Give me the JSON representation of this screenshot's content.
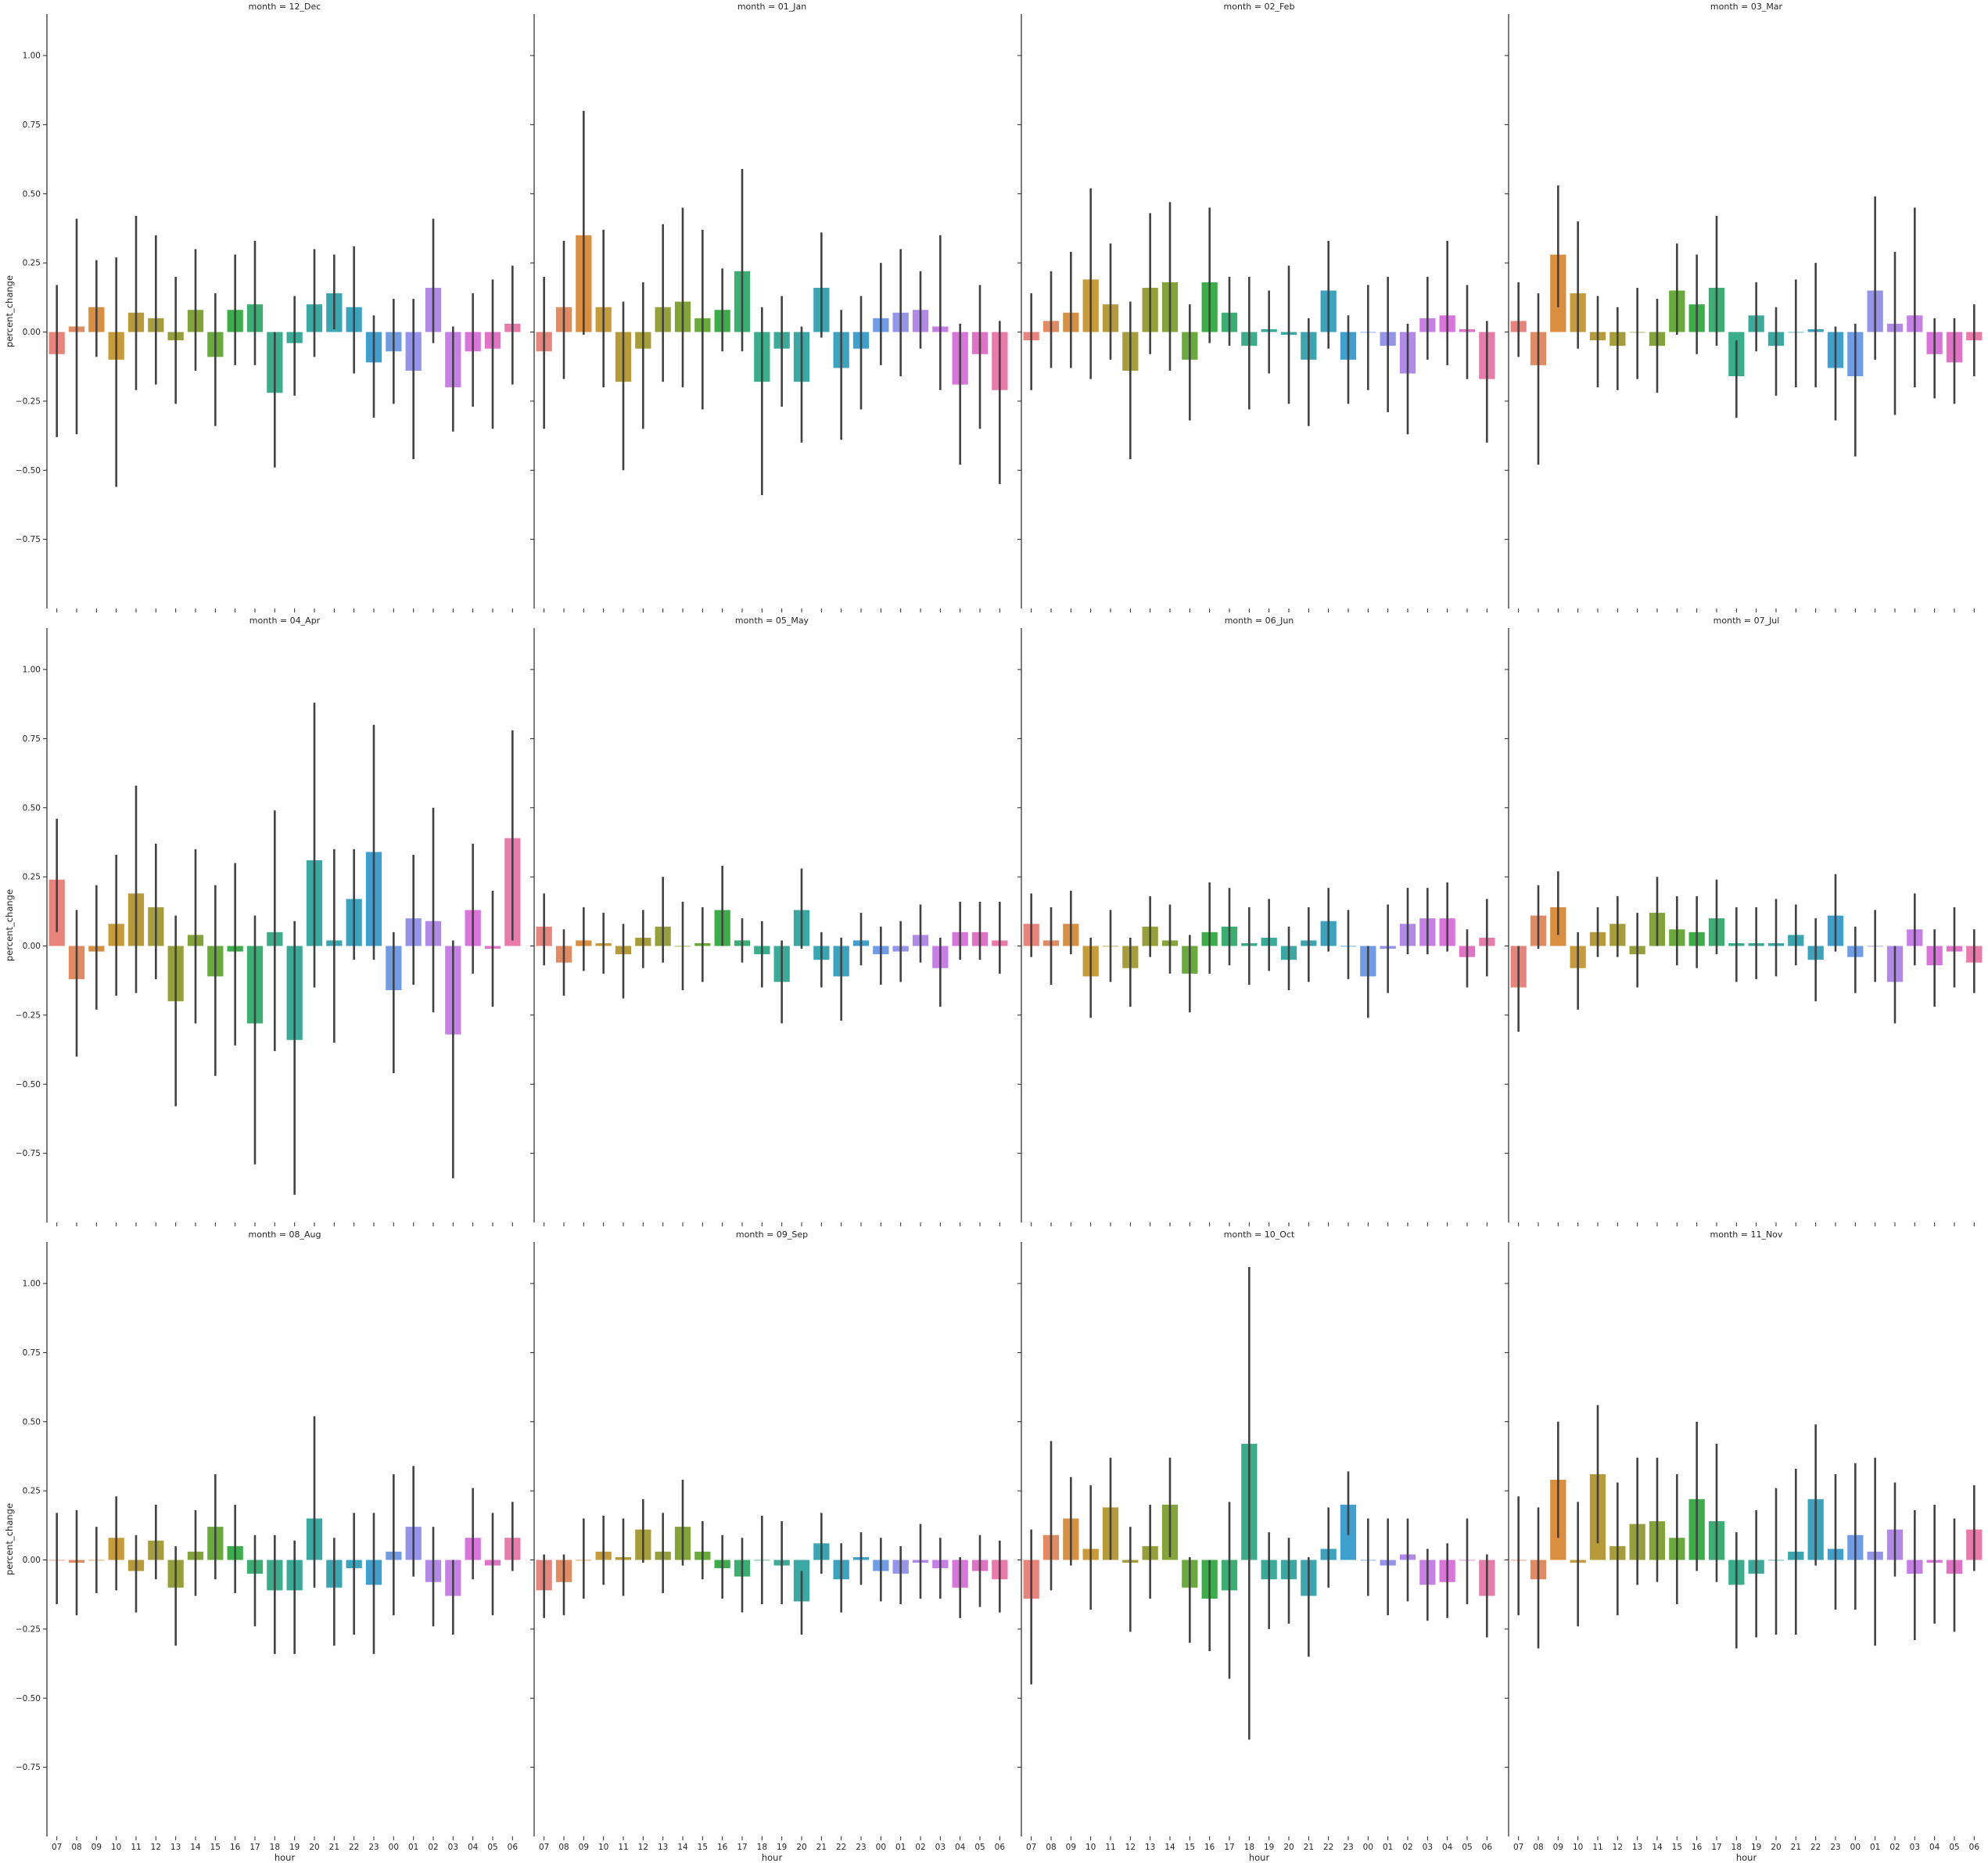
{
  "chart_data": {
    "type": "bar",
    "layout": "facet-grid 3 rows x 4 columns, shared axes",
    "xlabel": "hour",
    "ylabel": "percent_change",
    "ylim": [
      -1.0,
      1.15
    ],
    "yticks": [
      -0.75,
      -0.5,
      -0.25,
      0.0,
      0.25,
      0.5,
      0.75,
      1.0
    ],
    "ytick_labels": [
      "−0.75",
      "−0.50",
      "−0.25",
      "0.00",
      "0.25",
      "0.50",
      "0.75",
      "1.00"
    ],
    "categories": [
      "07",
      "08",
      "09",
      "10",
      "11",
      "12",
      "13",
      "14",
      "15",
      "16",
      "17",
      "18",
      "19",
      "20",
      "21",
      "22",
      "23",
      "00",
      "01",
      "02",
      "03",
      "04",
      "05",
      "06"
    ],
    "colors": [
      "#e8847b",
      "#e28b62",
      "#da8e3f",
      "#c79a3a",
      "#b79b3a",
      "#a69e3a",
      "#96a03a",
      "#84a43a",
      "#6aa93b",
      "#3bad49",
      "#3bae74",
      "#3aad8a",
      "#3aab98",
      "#3aa9a4",
      "#3aa6b1",
      "#3ba3be",
      "#3fa0d0",
      "#6f9ce5",
      "#9593ea",
      "#b18ae9",
      "#c57fe6",
      "#d874db",
      "#e272c6",
      "#e97aa9"
    ],
    "error_bar_color": "#424242",
    "grid": false,
    "panels": [
      {
        "title": "month = 12_Dec",
        "values": [
          -0.08,
          0.02,
          0.09,
          -0.1,
          0.07,
          0.05,
          -0.03,
          0.08,
          -0.09,
          0.08,
          0.1,
          -0.22,
          -0.04,
          0.1,
          0.14,
          0.09,
          -0.11,
          -0.07,
          -0.14,
          0.16,
          -0.2,
          -0.07,
          -0.06,
          0.03
        ],
        "ci_low": [
          -0.38,
          -0.37,
          -0.09,
          -0.56,
          -0.21,
          -0.19,
          -0.26,
          -0.14,
          -0.34,
          -0.12,
          -0.12,
          -0.49,
          -0.23,
          -0.09,
          0.01,
          -0.15,
          -0.31,
          -0.26,
          -0.46,
          -0.04,
          -0.36,
          -0.27,
          -0.35,
          -0.19
        ],
        "ci_high": [
          0.17,
          0.41,
          0.26,
          0.27,
          0.42,
          0.35,
          0.2,
          0.3,
          0.14,
          0.28,
          0.33,
          0.0,
          0.13,
          0.3,
          0.28,
          0.31,
          0.06,
          0.12,
          0.12,
          0.41,
          0.02,
          0.14,
          0.19,
          0.24
        ]
      },
      {
        "title": "month = 01_Jan",
        "values": [
          -0.07,
          0.09,
          0.35,
          0.09,
          -0.18,
          -0.06,
          0.09,
          0.11,
          0.05,
          0.08,
          0.22,
          -0.18,
          -0.06,
          -0.18,
          0.16,
          -0.13,
          -0.06,
          0.05,
          0.07,
          0.08,
          0.02,
          -0.19,
          -0.08,
          -0.21
        ],
        "ci_low": [
          -0.35,
          -0.17,
          -0.01,
          -0.2,
          -0.5,
          -0.35,
          -0.18,
          -0.2,
          -0.28,
          -0.07,
          -0.07,
          -0.59,
          -0.27,
          -0.4,
          -0.02,
          -0.39,
          -0.28,
          -0.12,
          -0.16,
          -0.06,
          -0.21,
          -0.48,
          -0.35,
          -0.55
        ],
        "ci_high": [
          0.2,
          0.33,
          0.8,
          0.37,
          0.11,
          0.18,
          0.39,
          0.45,
          0.37,
          0.23,
          0.59,
          0.09,
          0.13,
          0.02,
          0.36,
          0.08,
          0.13,
          0.25,
          0.3,
          0.22,
          0.35,
          0.03,
          0.17,
          0.04
        ]
      },
      {
        "title": "month = 02_Feb",
        "values": [
          -0.03,
          0.04,
          0.07,
          0.19,
          0.1,
          -0.14,
          0.16,
          0.18,
          -0.1,
          0.18,
          0.07,
          -0.05,
          0.01,
          -0.01,
          -0.1,
          0.15,
          -0.1,
          0.0,
          -0.05,
          -0.15,
          0.05,
          0.06,
          0.01,
          -0.17
        ],
        "ci_low": [
          -0.21,
          -0.13,
          -0.13,
          -0.17,
          -0.1,
          -0.46,
          -0.08,
          -0.14,
          -0.32,
          -0.04,
          -0.05,
          -0.28,
          -0.15,
          -0.26,
          -0.34,
          -0.06,
          -0.26,
          -0.21,
          -0.29,
          -0.37,
          -0.1,
          -0.12,
          -0.17,
          -0.4
        ],
        "ci_high": [
          0.14,
          0.22,
          0.29,
          0.52,
          0.32,
          0.11,
          0.43,
          0.47,
          0.1,
          0.45,
          0.2,
          0.2,
          0.15,
          0.24,
          0.05,
          0.33,
          0.06,
          0.17,
          0.2,
          0.03,
          0.2,
          0.33,
          0.17,
          0.04
        ]
      },
      {
        "title": "month = 03_Mar",
        "values": [
          0.04,
          -0.12,
          0.28,
          0.14,
          -0.03,
          -0.05,
          0.0,
          -0.05,
          0.15,
          0.1,
          0.16,
          -0.16,
          0.06,
          -0.05,
          0.0,
          0.01,
          -0.13,
          -0.16,
          0.15,
          0.03,
          0.06,
          -0.08,
          -0.11,
          -0.03
        ],
        "ci_low": [
          -0.09,
          -0.48,
          0.09,
          -0.06,
          -0.2,
          -0.21,
          -0.17,
          -0.22,
          -0.01,
          -0.08,
          -0.05,
          -0.31,
          -0.07,
          -0.23,
          -0.2,
          -0.2,
          -0.32,
          -0.45,
          -0.1,
          -0.3,
          -0.2,
          -0.24,
          -0.26,
          -0.16
        ],
        "ci_high": [
          0.18,
          0.14,
          0.53,
          0.4,
          0.13,
          0.09,
          0.16,
          0.12,
          0.32,
          0.28,
          0.42,
          -0.03,
          0.18,
          0.09,
          0.19,
          0.25,
          0.02,
          0.03,
          0.49,
          0.29,
          0.45,
          0.05,
          0.05,
          0.1
        ]
      },
      {
        "title": "month = 04_Apr",
        "values": [
          0.24,
          -0.12,
          -0.02,
          0.08,
          0.19,
          0.14,
          -0.2,
          0.04,
          -0.11,
          -0.02,
          -0.28,
          0.05,
          -0.34,
          0.31,
          0.02,
          0.17,
          0.34,
          -0.16,
          0.1,
          0.09,
          -0.32,
          0.13,
          -0.01,
          0.39
        ],
        "ci_low": [
          0.05,
          -0.4,
          -0.23,
          -0.18,
          -0.17,
          -0.12,
          -0.58,
          -0.28,
          -0.47,
          -0.36,
          -0.79,
          -0.38,
          -0.9,
          -0.15,
          -0.35,
          -0.05,
          -0.05,
          -0.46,
          -0.14,
          -0.24,
          -0.84,
          -0.1,
          -0.22,
          0.02
        ],
        "ci_high": [
          0.46,
          0.13,
          0.22,
          0.33,
          0.58,
          0.37,
          0.11,
          0.35,
          0.22,
          0.3,
          0.11,
          0.49,
          0.09,
          0.88,
          0.35,
          0.35,
          0.8,
          0.05,
          0.33,
          0.5,
          0.02,
          0.37,
          0.2,
          0.78
        ]
      },
      {
        "title": "month = 05_May",
        "values": [
          0.07,
          -0.06,
          0.02,
          0.01,
          -0.03,
          0.03,
          0.07,
          0.0,
          0.01,
          0.13,
          0.02,
          -0.03,
          -0.13,
          0.13,
          -0.05,
          -0.11,
          0.02,
          -0.03,
          -0.02,
          0.04,
          -0.08,
          0.05,
          0.05,
          0.02
        ],
        "ci_low": [
          -0.07,
          -0.18,
          -0.09,
          -0.1,
          -0.19,
          -0.08,
          -0.06,
          -0.16,
          -0.13,
          0.0,
          -0.06,
          -0.15,
          -0.28,
          -0.01,
          -0.15,
          -0.27,
          -0.07,
          -0.14,
          -0.13,
          -0.06,
          -0.22,
          -0.05,
          -0.05,
          -0.1
        ],
        "ci_high": [
          0.19,
          0.06,
          0.14,
          0.12,
          0.08,
          0.13,
          0.25,
          0.16,
          0.14,
          0.29,
          0.1,
          0.09,
          0.02,
          0.28,
          0.05,
          0.03,
          0.12,
          0.07,
          0.09,
          0.15,
          0.03,
          0.16,
          0.16,
          0.16
        ]
      },
      {
        "title": "month = 06_Jun",
        "values": [
          0.08,
          0.02,
          0.08,
          -0.11,
          0.0,
          -0.08,
          0.07,
          0.02,
          -0.1,
          0.05,
          0.07,
          0.01,
          0.03,
          -0.05,
          0.02,
          0.09,
          0.0,
          -0.11,
          -0.01,
          0.08,
          0.1,
          0.1,
          -0.04,
          0.03
        ],
        "ci_low": [
          -0.04,
          -0.14,
          -0.03,
          -0.26,
          -0.13,
          -0.22,
          -0.04,
          -0.1,
          -0.24,
          -0.1,
          -0.07,
          -0.14,
          -0.09,
          -0.16,
          -0.13,
          -0.02,
          -0.12,
          -0.26,
          -0.17,
          -0.03,
          -0.03,
          -0.02,
          -0.15,
          -0.11
        ],
        "ci_high": [
          0.19,
          0.14,
          0.2,
          0.03,
          0.13,
          0.03,
          0.18,
          0.15,
          0.04,
          0.23,
          0.21,
          0.14,
          0.17,
          0.07,
          0.14,
          0.21,
          0.13,
          0.0,
          0.15,
          0.21,
          0.21,
          0.23,
          0.06,
          0.17
        ]
      },
      {
        "title": "month = 07_Jul",
        "values": [
          -0.15,
          0.11,
          0.14,
          -0.08,
          0.05,
          0.08,
          -0.03,
          0.12,
          0.06,
          0.05,
          0.1,
          0.01,
          0.01,
          0.01,
          0.04,
          -0.05,
          0.11,
          -0.04,
          0.0,
          -0.13,
          0.06,
          -0.07,
          -0.02,
          -0.06
        ],
        "ci_low": [
          -0.31,
          -0.01,
          0.04,
          -0.23,
          -0.04,
          -0.04,
          -0.15,
          0.0,
          -0.07,
          -0.08,
          -0.03,
          -0.13,
          -0.12,
          -0.11,
          -0.07,
          -0.2,
          -0.02,
          -0.17,
          -0.13,
          -0.28,
          -0.07,
          -0.22,
          -0.15,
          -0.17
        ],
        "ci_high": [
          0.0,
          0.22,
          0.27,
          0.05,
          0.14,
          0.18,
          0.12,
          0.25,
          0.18,
          0.18,
          0.24,
          0.14,
          0.14,
          0.17,
          0.15,
          0.1,
          0.26,
          0.07,
          0.13,
          0.0,
          0.19,
          0.06,
          0.14,
          0.06
        ]
      },
      {
        "title": "month = 08_Aug",
        "values": [
          0.0,
          -0.01,
          0.0,
          0.08,
          -0.04,
          0.07,
          -0.1,
          0.03,
          0.12,
          0.05,
          -0.05,
          -0.11,
          -0.11,
          0.15,
          -0.1,
          -0.03,
          -0.09,
          0.03,
          0.12,
          -0.08,
          -0.13,
          0.08,
          -0.02,
          0.08
        ],
        "ci_low": [
          -0.16,
          -0.2,
          -0.12,
          -0.11,
          -0.19,
          -0.07,
          -0.31,
          -0.13,
          -0.07,
          -0.12,
          -0.24,
          -0.34,
          -0.34,
          -0.1,
          -0.31,
          -0.27,
          -0.34,
          -0.2,
          -0.06,
          -0.24,
          -0.27,
          -0.07,
          -0.2,
          -0.04
        ],
        "ci_high": [
          0.17,
          0.18,
          0.12,
          0.23,
          0.09,
          0.2,
          0.05,
          0.18,
          0.31,
          0.2,
          0.09,
          0.09,
          0.07,
          0.52,
          0.08,
          0.17,
          0.17,
          0.31,
          0.34,
          0.12,
          0.0,
          0.26,
          0.17,
          0.21
        ]
      },
      {
        "title": "month = 09_Sep",
        "values": [
          -0.11,
          -0.08,
          0.0,
          0.03,
          0.01,
          0.11,
          0.03,
          0.12,
          0.03,
          -0.03,
          -0.06,
          0.0,
          -0.02,
          -0.15,
          0.06,
          -0.07,
          0.01,
          -0.04,
          -0.05,
          -0.01,
          -0.03,
          -0.1,
          -0.04,
          -0.07
        ],
        "ci_low": [
          -0.21,
          -0.2,
          -0.14,
          -0.09,
          -0.13,
          -0.01,
          -0.12,
          -0.02,
          -0.07,
          -0.14,
          -0.19,
          -0.16,
          -0.16,
          -0.27,
          -0.05,
          -0.19,
          -0.09,
          -0.15,
          -0.16,
          -0.14,
          -0.14,
          -0.21,
          -0.17,
          -0.19
        ],
        "ci_high": [
          0.02,
          0.02,
          0.15,
          0.16,
          0.15,
          0.22,
          0.17,
          0.29,
          0.14,
          0.09,
          0.08,
          0.16,
          0.14,
          -0.04,
          0.17,
          0.06,
          0.1,
          0.08,
          0.05,
          0.13,
          0.08,
          0.01,
          0.09,
          0.07
        ]
      },
      {
        "title": "month = 10_Oct",
        "values": [
          -0.14,
          0.09,
          0.15,
          0.04,
          0.19,
          -0.01,
          0.05,
          0.2,
          -0.1,
          -0.14,
          -0.11,
          0.42,
          -0.07,
          -0.07,
          -0.13,
          0.04,
          0.2,
          0.0,
          -0.02,
          0.02,
          -0.09,
          -0.08,
          0.0,
          -0.13
        ],
        "ci_low": [
          -0.45,
          -0.11,
          -0.02,
          -0.18,
          0.0,
          -0.26,
          -0.14,
          0.01,
          -0.3,
          -0.33,
          -0.43,
          -0.65,
          -0.25,
          -0.23,
          -0.35,
          -0.1,
          0.09,
          -0.13,
          -0.2,
          -0.15,
          -0.22,
          -0.21,
          -0.16,
          -0.28
        ],
        "ci_high": [
          0.11,
          0.43,
          0.3,
          0.27,
          0.37,
          0.12,
          0.2,
          0.37,
          0.01,
          0.0,
          0.21,
          1.06,
          0.1,
          0.08,
          0.01,
          0.19,
          0.32,
          0.15,
          0.15,
          0.15,
          0.04,
          0.06,
          0.15,
          0.02
        ]
      },
      {
        "title": "month = 11_Nov",
        "values": [
          0.0,
          -0.07,
          0.29,
          -0.01,
          0.31,
          0.05,
          0.13,
          0.14,
          0.08,
          0.22,
          0.14,
          -0.09,
          -0.05,
          0.0,
          0.03,
          0.22,
          0.04,
          0.09,
          0.03,
          0.11,
          -0.05,
          -0.01,
          -0.05,
          0.11
        ],
        "ci_low": [
          -0.2,
          -0.32,
          0.08,
          -0.24,
          0.06,
          -0.2,
          -0.09,
          -0.08,
          -0.16,
          -0.04,
          -0.08,
          -0.32,
          -0.28,
          -0.27,
          -0.27,
          -0.02,
          -0.18,
          -0.18,
          -0.31,
          -0.06,
          -0.29,
          -0.23,
          -0.26,
          -0.04
        ],
        "ci_high": [
          0.23,
          0.19,
          0.5,
          0.21,
          0.56,
          0.28,
          0.37,
          0.37,
          0.31,
          0.5,
          0.42,
          0.1,
          0.18,
          0.26,
          0.33,
          0.49,
          0.31,
          0.35,
          0.37,
          0.28,
          0.18,
          0.2,
          0.15,
          0.27
        ]
      }
    ]
  }
}
